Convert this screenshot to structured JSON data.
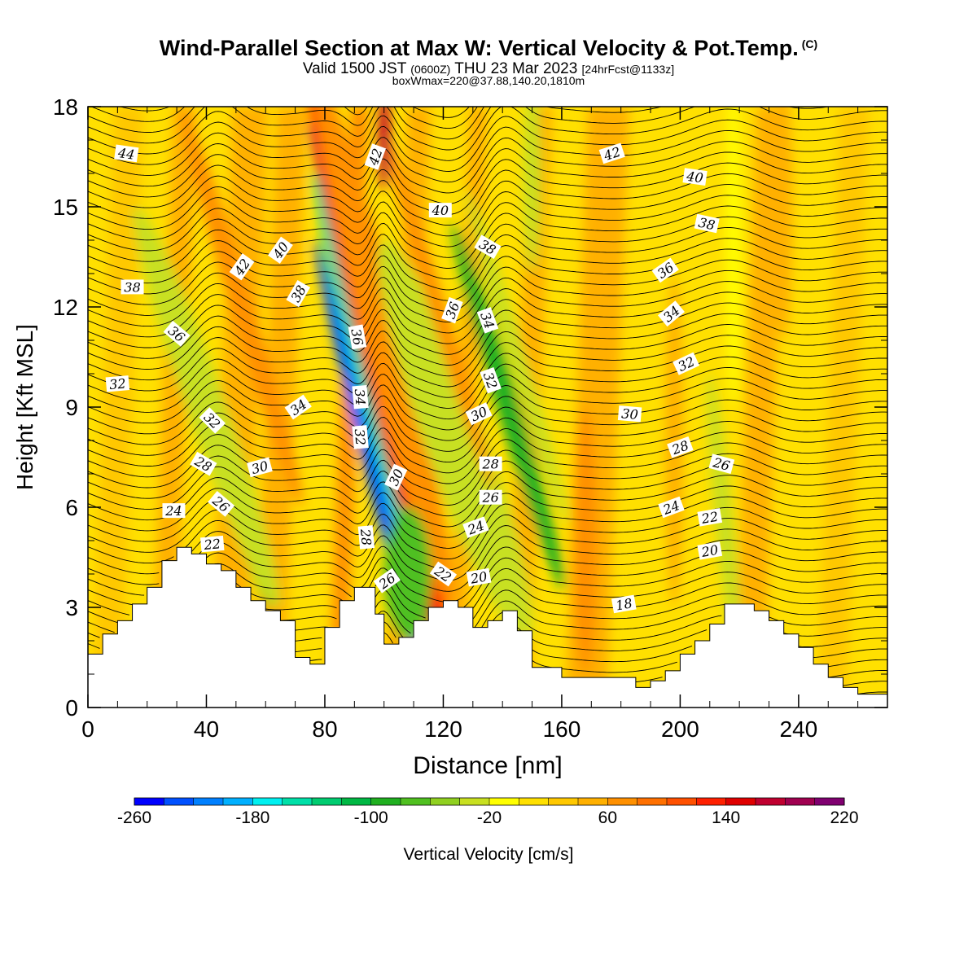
{
  "header": {
    "title": "Wind-Parallel Section at Max W: Vertical Velocity & Pot.Temp.",
    "copyright": "(C)",
    "valid_main": "Valid 1500 JST",
    "valid_utc": "(0600Z)",
    "valid_date": "THU 23 Mar 2023",
    "forecast": "[24hrFcst@1133z]",
    "boxmax": "boxWmax=220@37.88,140.20,1810m"
  },
  "chart_data": {
    "type": "heatmap",
    "xlabel": "Distance [nm]",
    "ylabel": "Height [Kft MSL]",
    "xlim": [
      0,
      270
    ],
    "ylim": [
      0,
      18
    ],
    "xticks": [
      0,
      40,
      80,
      120,
      160,
      200,
      240
    ],
    "yticks": [
      0,
      3,
      6,
      9,
      12,
      15,
      18
    ],
    "colorbar": {
      "label": "Vertical Velocity [cm/s]",
      "tick_labels": [
        -260,
        -180,
        -100,
        -20,
        60,
        140,
        220
      ],
      "min": -260,
      "max": 220,
      "step": 20,
      "colors": [
        "#0000ff",
        "#0050ff",
        "#0080ff",
        "#00b0ff",
        "#00f0f0",
        "#00e0a8",
        "#00cc70",
        "#00b844",
        "#20b020",
        "#50c020",
        "#90d020",
        "#c8e020",
        "#ffff00",
        "#ffe000",
        "#ffc800",
        "#ffb000",
        "#ff9000",
        "#ff7000",
        "#ff5000",
        "#ff2000",
        "#e00000",
        "#c00030",
        "#a00050",
        "#800070",
        "#600090"
      ]
    },
    "terrain_profile": [
      [
        0,
        1.6
      ],
      [
        5,
        2.2
      ],
      [
        10,
        2.6
      ],
      [
        15,
        3.1
      ],
      [
        20,
        3.6
      ],
      [
        25,
        4.4
      ],
      [
        30,
        4.8
      ],
      [
        35,
        4.6
      ],
      [
        40,
        4.3
      ],
      [
        45,
        4.1
      ],
      [
        50,
        3.6
      ],
      [
        55,
        3.2
      ],
      [
        60,
        2.9
      ],
      [
        65,
        2.6
      ],
      [
        70,
        1.5
      ],
      [
        75,
        1.3
      ],
      [
        80,
        2.4
      ],
      [
        85,
        3.2
      ],
      [
        90,
        3.6
      ],
      [
        94,
        3.6
      ],
      [
        97,
        2.8
      ],
      [
        100,
        1.9
      ],
      [
        105,
        2.1
      ],
      [
        110,
        2.6
      ],
      [
        115,
        3.0
      ],
      [
        120,
        3.2
      ],
      [
        125,
        3.0
      ],
      [
        130,
        2.4
      ],
      [
        135,
        2.6
      ],
      [
        140,
        2.9
      ],
      [
        145,
        2.3
      ],
      [
        150,
        1.2
      ],
      [
        160,
        0.9
      ],
      [
        170,
        0.9
      ],
      [
        180,
        0.9
      ],
      [
        185,
        0.6
      ],
      [
        190,
        0.8
      ],
      [
        195,
        1.1
      ],
      [
        200,
        1.6
      ],
      [
        205,
        2.0
      ],
      [
        210,
        2.5
      ],
      [
        215,
        3.1
      ],
      [
        220,
        3.1
      ],
      [
        225,
        2.9
      ],
      [
        230,
        2.6
      ],
      [
        235,
        2.2
      ],
      [
        240,
        1.8
      ],
      [
        245,
        1.3
      ],
      [
        250,
        0.9
      ],
      [
        255,
        0.6
      ],
      [
        260,
        0.4
      ],
      [
        270,
        0.3
      ]
    ],
    "velocity_bands": [
      {
        "x": 5,
        "w": 10,
        "value": 30
      },
      {
        "x": 25,
        "w": 8,
        "value": 40
      },
      {
        "x": 45,
        "w": 12,
        "value": 50
      },
      {
        "x": 60,
        "w": 10,
        "value": 40
      },
      {
        "x": 85,
        "w": 6,
        "value": 60
      },
      {
        "x": 104,
        "w": 8,
        "value": 50
      },
      {
        "x": 125,
        "w": 6,
        "value": 40
      },
      {
        "x": 145,
        "w": 8,
        "value": 40
      },
      {
        "x": 165,
        "w": 14,
        "value": 50
      },
      {
        "x": 222,
        "w": 10,
        "value": 40
      },
      {
        "x": 250,
        "w": 10,
        "value": 30
      }
    ],
    "velocity_features": [
      {
        "x": 95,
        "y": 7.5,
        "w": 5.0,
        "h": 13.0,
        "skew": -0.25,
        "value": -240
      },
      {
        "x": 95,
        "y": 9.5,
        "w": 7.5,
        "h": 13.0,
        "skew": -0.25,
        "value": -150
      },
      {
        "x": 98.5,
        "y": 9.0,
        "w": 4.5,
        "h": 17.0,
        "skew": -0.25,
        "value": 180
      },
      {
        "x": 98.5,
        "y": 10.0,
        "w": 9.0,
        "h": 17.0,
        "skew": -0.25,
        "value": 120
      },
      {
        "x": 100,
        "y": 11.0,
        "w": 14.0,
        "h": 16.0,
        "skew": -0.25,
        "value": 60
      },
      {
        "x": 42,
        "y": 8.0,
        "w": 8.0,
        "h": 10.0,
        "skew": -0.35,
        "value": -70
      },
      {
        "x": 40,
        "y": 9.0,
        "w": 14.0,
        "h": 12.0,
        "skew": -0.35,
        "value": -30
      },
      {
        "x": 128,
        "y": 6.5,
        "w": 14.0,
        "h": 8.0,
        "skew": -0.35,
        "value": -90
      },
      {
        "x": 124,
        "y": 8.0,
        "w": 22.0,
        "h": 12.0,
        "skew": -0.35,
        "value": -40
      },
      {
        "x": 142,
        "y": 9.0,
        "w": 8.0,
        "h": 11.0,
        "skew": -0.3,
        "value": -90
      },
      {
        "x": 145,
        "y": 10.5,
        "w": 6.0,
        "h": 10.0,
        "skew": -0.3,
        "value": -40
      },
      {
        "x": 52,
        "y": 12.0,
        "w": 8.0,
        "h": 12.0,
        "skew": -0.3,
        "value": 60
      },
      {
        "x": 118,
        "y": 12.0,
        "w": 6.0,
        "h": 11.0,
        "skew": -0.3,
        "value": 60
      },
      {
        "x": 108,
        "y": 4.0,
        "w": 16.0,
        "h": 4.0,
        "skew": 0.0,
        "value": -80
      },
      {
        "x": 215,
        "y": 5.5,
        "w": 6.0,
        "h": 9.0,
        "skew": -0.1,
        "value": -30
      },
      {
        "x": 218,
        "y": 14.0,
        "w": 5.0,
        "h": 10.0,
        "skew": 0.0,
        "value": -20
      },
      {
        "x": 168,
        "y": 5.0,
        "w": 8.0,
        "h": 8.0,
        "skew": 0.0,
        "value": 60
      },
      {
        "x": 150,
        "y": 16.0,
        "w": 6.0,
        "h": 6.0,
        "skew": 0.0,
        "value": -40
      },
      {
        "x": 198,
        "y": 8.0,
        "w": 6.0,
        "h": 10.0,
        "skew": 0.0,
        "value": 50
      },
      {
        "x": 235,
        "y": 15.0,
        "w": 6.0,
        "h": 8.0,
        "skew": 0.0,
        "value": 40
      },
      {
        "x": 100,
        "y": 17.0,
        "w": 4.0,
        "h": 3.0,
        "skew": 0.0,
        "value": 160
      }
    ],
    "theta_contour_labels": [
      {
        "value": "44",
        "x": 13,
        "y": 16.6,
        "angle": 8
      },
      {
        "value": "42",
        "x": 97,
        "y": 16.5,
        "angle": -70
      },
      {
        "value": "42",
        "x": 177,
        "y": 16.6,
        "angle": -18
      },
      {
        "value": "40",
        "x": 205,
        "y": 15.9,
        "angle": 8
      },
      {
        "value": "40",
        "x": 119,
        "y": 14.9,
        "angle": 0
      },
      {
        "value": "38",
        "x": 209,
        "y": 14.5,
        "angle": 12
      },
      {
        "value": "42",
        "x": 52,
        "y": 13.2,
        "angle": -55
      },
      {
        "value": "40",
        "x": 65,
        "y": 13.7,
        "angle": -55
      },
      {
        "value": "38",
        "x": 135,
        "y": 13.8,
        "angle": 30
      },
      {
        "value": "36",
        "x": 195,
        "y": 13.1,
        "angle": -35
      },
      {
        "value": "38",
        "x": 15,
        "y": 12.6,
        "angle": 0
      },
      {
        "value": "38",
        "x": 71,
        "y": 12.4,
        "angle": -60
      },
      {
        "value": "36",
        "x": 123,
        "y": 11.9,
        "angle": -70
      },
      {
        "value": "34",
        "x": 135,
        "y": 11.6,
        "angle": 70
      },
      {
        "value": "34",
        "x": 197,
        "y": 11.8,
        "angle": -40
      },
      {
        "value": "36",
        "x": 30,
        "y": 11.2,
        "angle": 40
      },
      {
        "value": "36",
        "x": 91,
        "y": 11.1,
        "angle": 80
      },
      {
        "value": "32",
        "x": 202,
        "y": 10.3,
        "angle": -25
      },
      {
        "value": "32",
        "x": 10,
        "y": 9.7,
        "angle": -5
      },
      {
        "value": "32",
        "x": 136,
        "y": 9.8,
        "angle": 70
      },
      {
        "value": "34",
        "x": 71,
        "y": 9.0,
        "angle": -35
      },
      {
        "value": "34",
        "x": 92,
        "y": 9.3,
        "angle": 85
      },
      {
        "value": "30",
        "x": 132,
        "y": 8.8,
        "angle": -25
      },
      {
        "value": "30",
        "x": 183,
        "y": 8.8,
        "angle": 5
      },
      {
        "value": "32",
        "x": 42,
        "y": 8.6,
        "angle": 45
      },
      {
        "value": "32",
        "x": 92,
        "y": 8.1,
        "angle": 85
      },
      {
        "value": "28",
        "x": 200,
        "y": 7.8,
        "angle": -20
      },
      {
        "value": "28",
        "x": 136,
        "y": 7.3,
        "angle": 0
      },
      {
        "value": "28",
        "x": 39,
        "y": 7.3,
        "angle": 30
      },
      {
        "value": "30",
        "x": 58,
        "y": 7.2,
        "angle": -15
      },
      {
        "value": "30",
        "x": 104,
        "y": 6.9,
        "angle": -65
      },
      {
        "value": "26",
        "x": 214,
        "y": 7.3,
        "angle": 15
      },
      {
        "value": "26",
        "x": 136,
        "y": 6.3,
        "angle": 0
      },
      {
        "value": "26",
        "x": 45,
        "y": 6.1,
        "angle": 40
      },
      {
        "value": "24",
        "x": 197,
        "y": 6.0,
        "angle": -20
      },
      {
        "value": "24",
        "x": 29,
        "y": 5.9,
        "angle": 0
      },
      {
        "value": "22",
        "x": 210,
        "y": 5.7,
        "angle": -10
      },
      {
        "value": "24",
        "x": 131,
        "y": 5.4,
        "angle": -20
      },
      {
        "value": "28",
        "x": 94,
        "y": 5.1,
        "angle": 85
      },
      {
        "value": "22",
        "x": 42,
        "y": 4.9,
        "angle": -5
      },
      {
        "value": "20",
        "x": 210,
        "y": 4.7,
        "angle": -10
      },
      {
        "value": "22",
        "x": 120,
        "y": 4.0,
        "angle": 35
      },
      {
        "value": "20",
        "x": 132,
        "y": 3.9,
        "angle": -10
      },
      {
        "value": "26",
        "x": 101,
        "y": 3.8,
        "angle": -35
      },
      {
        "value": "18",
        "x": 181,
        "y": 3.1,
        "angle": -10
      }
    ]
  }
}
